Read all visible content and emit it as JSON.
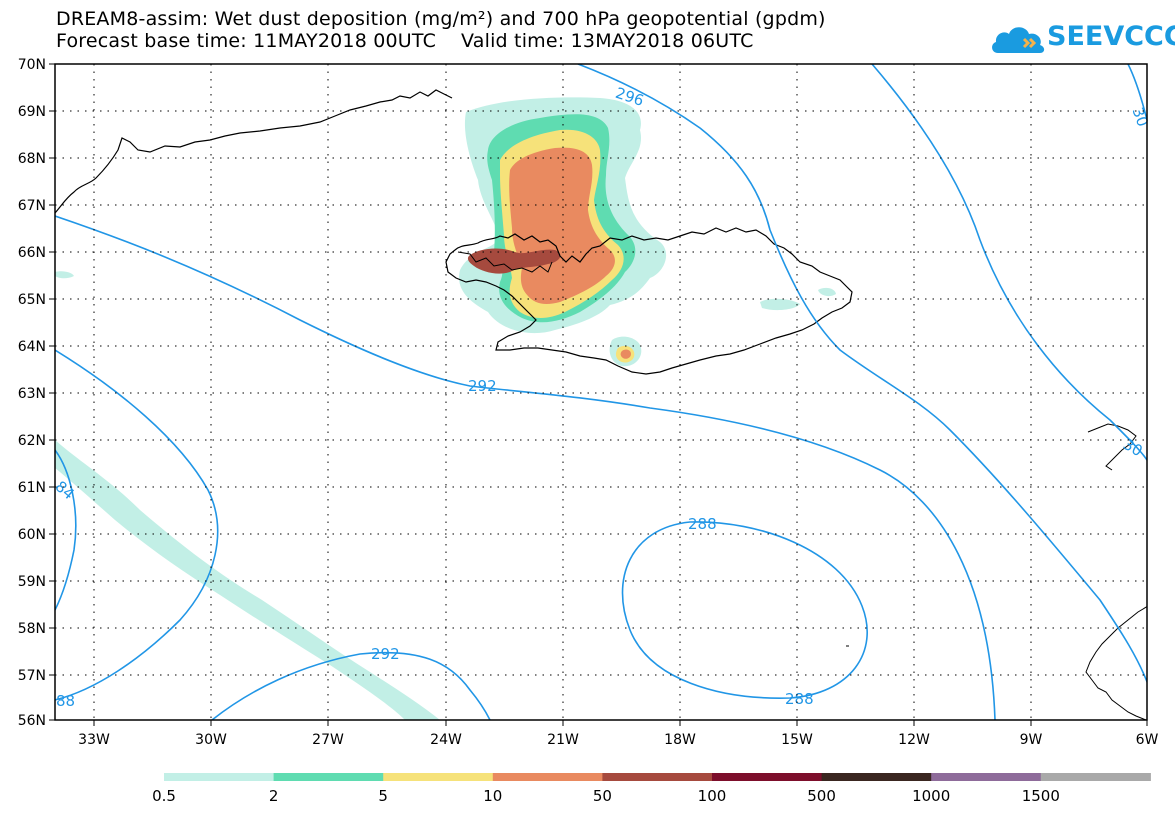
{
  "title": {
    "line1": "DREAM8-assim: Wet dust deposition (mg/m²) and 700 hPa geopotential (gpdm)",
    "line2": "Forecast base time: 11MAY2018 00UTC    Valid time: 13MAY2018 06UTC"
  },
  "logo": {
    "text": "SEEVCCC",
    "icon": "cloud-logo-icon",
    "color": "#1a9be0"
  },
  "axes": {
    "lat_labels": [
      "70N",
      "69N",
      "68N",
      "67N",
      "66N",
      "65N",
      "64N",
      "63N",
      "62N",
      "61N",
      "60N",
      "59N",
      "58N",
      "57N",
      "56N"
    ],
    "lon_labels": [
      "33W",
      "30W",
      "27W",
      "24W",
      "21W",
      "18W",
      "15W",
      "12W",
      "9W",
      "6W"
    ]
  },
  "contour_labels": {
    "c296": "296",
    "c292a": "292",
    "c292b": "292",
    "c288a": "288",
    "c288b": "288",
    "c284": "84",
    "c288c": "88",
    "c300a": "30",
    "c300b": "30"
  },
  "colorbar": {
    "labels": [
      "0.5",
      "2",
      "5",
      "10",
      "50",
      "100",
      "500",
      "1000",
      "1500"
    ],
    "colors": [
      "#c2efe6",
      "#5fdcb1",
      "#f6e27a",
      "#e98a60",
      "#a64a3e",
      "#7d0e2b",
      "#3a2620",
      "#8e6b9a",
      "#a9a9a9"
    ]
  },
  "colors": {
    "contour": "#2196e6",
    "dust_light": "#c2efe6",
    "dust_green": "#5fdcb1",
    "dust_yellow": "#f6e27a",
    "dust_orange": "#e98a60",
    "dust_brown": "#a64a3e"
  }
}
